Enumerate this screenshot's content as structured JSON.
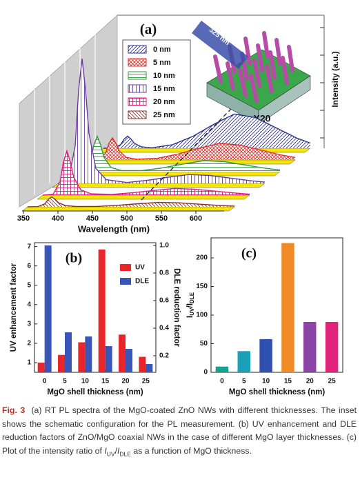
{
  "chart_data": [
    {
      "type": "waterfall",
      "title": "(a)",
      "xlabel": "Wavelength (nm)",
      "ylabel": "Intensity (a.u.)",
      "annotation": "X20",
      "inset_label": "325 nm",
      "x": [
        350,
        365,
        375,
        380,
        385,
        390,
        395,
        405,
        420,
        450,
        480,
        510,
        540,
        570,
        600,
        630,
        650
      ],
      "xlim": [
        350,
        650
      ],
      "xticks": [
        350,
        400,
        450,
        500,
        550,
        600
      ],
      "series": [
        {
          "name": "0 nm",
          "color": "#2c2f8c",
          "values": [
            0,
            0.2,
            3.3,
            8.3,
            11,
            8.3,
            4.4,
            1.3,
            0.3,
            3.1,
            10.9,
            21.7,
            31,
            27.9,
            18.6,
            9.3,
            4.7
          ]
        },
        {
          "name": "5 nm",
          "color": "#e0302c",
          "values": [
            0,
            0.4,
            6,
            15,
            20,
            15,
            8,
            2.4,
            0.6,
            1.5,
            5.3,
            10.5,
            15,
            13.5,
            9,
            4.5,
            2.3
          ]
        },
        {
          "name": "10 nm",
          "color": "#2a9a3a",
          "values": [
            0,
            0.6,
            9.6,
            24,
            32,
            24,
            12.8,
            3.8,
            1,
            1,
            3.5,
            7,
            10,
            9,
            6,
            3,
            1.5
          ]
        },
        {
          "name": "15 nm",
          "color": "#6a3aa6",
          "values": [
            0,
            2.3,
            33.9,
            84.8,
            113,
            84.8,
            45.2,
            13.6,
            3.4,
            0.8,
            2.8,
            5.6,
            8,
            7.2,
            4.8,
            2.4,
            1.2
          ]
        },
        {
          "name": "20 nm",
          "color": "#d8207e",
          "values": [
            0,
            0.8,
            12,
            30,
            40,
            30,
            16,
            4.8,
            1.2,
            0.6,
            2.1,
            4.2,
            6,
            5.4,
            3.6,
            1.8,
            0.9
          ]
        },
        {
          "name": "25 nm",
          "color": "#8a2e2e",
          "values": [
            0,
            0.2,
            2.7,
            6.8,
            9,
            6.8,
            3.6,
            1.1,
            0.3,
            0.4,
            1.4,
            2.8,
            4,
            3.6,
            2.4,
            1.2,
            0.6
          ]
        }
      ],
      "floor_color": "#f4e600"
    },
    {
      "type": "bar",
      "title": "(b)",
      "xlabel": "MgO shell thickness (nm)",
      "ylabel": "UV enhancement factor",
      "y2label": "DLE reduction factor",
      "categories": [
        "0",
        "5",
        "10",
        "15",
        "20",
        "25"
      ],
      "series": [
        {
          "name": "UV",
          "color": "#e8262a",
          "values": [
            1.0,
            1.4,
            2.05,
            6.85,
            2.45,
            1.3
          ]
        },
        {
          "name": "DLE",
          "color": "#3a55b8",
          "values": [
            1.0,
            0.37,
            0.34,
            0.27,
            0.25,
            0.14
          ],
          "axis": "y2"
        }
      ],
      "ylim": [
        0.5,
        7.2
      ],
      "yticks": [
        1,
        2,
        3,
        4,
        5,
        6,
        7
      ],
      "y2lim": [
        0.08,
        1.02
      ],
      "y2ticks": [
        0.2,
        0.4,
        0.6,
        0.8,
        {
          "value": 1,
          "label": "1.0"
        }
      ],
      "legend": "upper right"
    },
    {
      "type": "bar",
      "title": "(c)",
      "xlabel": "MgO shell thickness (nm)",
      "ylabel_parts": [
        "I",
        "UV",
        "/I",
        "DLE"
      ],
      "categories": [
        "0",
        "5",
        "10",
        "15",
        "20",
        "25"
      ],
      "values": [
        10,
        37,
        58,
        226,
        88,
        88
      ],
      "colors": [
        "#17a08a",
        "#1aa0b8",
        "#3050b0",
        "#f08a24",
        "#8a44a8",
        "#e0247c"
      ],
      "ylim": [
        0,
        235
      ],
      "yticks": [
        0,
        50,
        100,
        150,
        200
      ]
    }
  ],
  "caption": {
    "label": "Fig. 3",
    "text_1": "(a) RT PL spectra of the MgO-coated ZnO NWs with different thicknesses. The inset shows the schematic configuration for the PL measurement. (b) UV enhancement and DLE reduction factors of ZnO/MgO coaxial NWs in the case of different MgO layer thicknesses. (c) Plot of the intensity ratio of",
    "i1": "I",
    "sub1": "UV",
    "slash": "/",
    "i2": "I",
    "sub2": "DLE",
    "text_2": "as a function of MgO thickness."
  }
}
